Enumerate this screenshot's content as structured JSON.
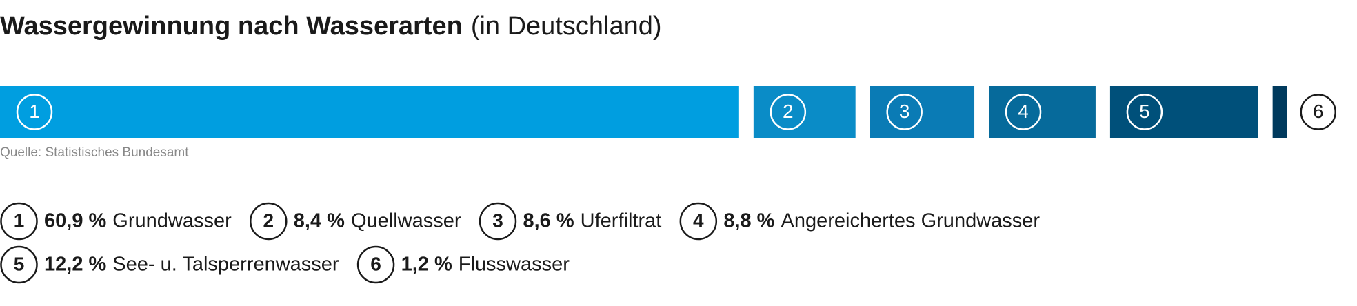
{
  "chart_data": {
    "type": "stacked-bar",
    "title": "Wassergewinnung nach Wasserarten",
    "subtitle": "(in Deutschland)",
    "source": "Quelle: Statistisches Bundesamt",
    "numbers": [
      "1",
      "2",
      "3",
      "4",
      "5",
      "6"
    ],
    "categories": [
      "Grundwasser",
      "Quellwasser",
      "Uferfiltrat",
      "Angereichertes Grundwasser",
      "See- u. Talsperrenwasser",
      "Flusswasser"
    ],
    "values": [
      60.9,
      8.4,
      8.6,
      8.8,
      12.2,
      1.2
    ],
    "value_labels": [
      "60,9 %",
      "8,4 %",
      "8,6 %",
      "8,8 %",
      "12,2 %",
      "1,2 %"
    ],
    "colors": [
      "#009ee0",
      "#0a8cc7",
      "#0a7bb5",
      "#066a9b",
      "#00507a",
      "#003a5d"
    ]
  }
}
